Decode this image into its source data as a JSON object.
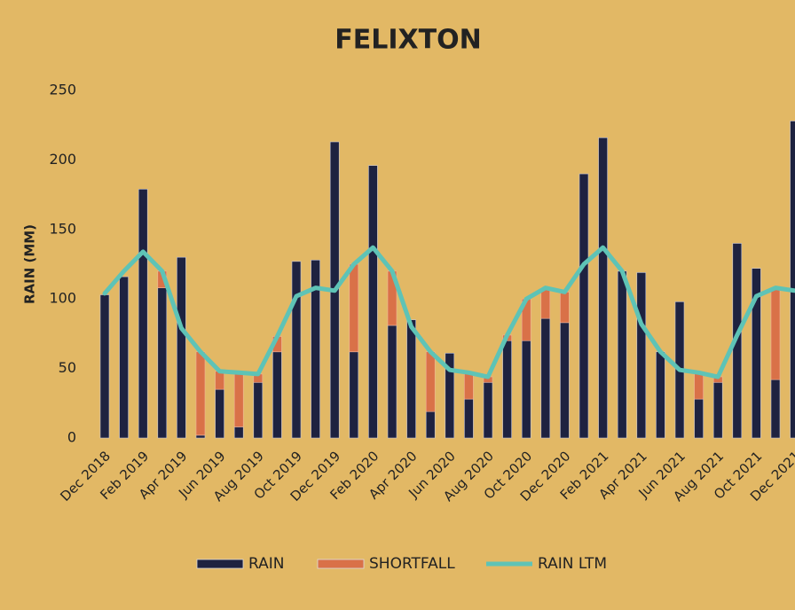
{
  "chart_data": {
    "type": "stacked-bar-line",
    "title": "FELIXTON",
    "y_label": "RAIN (MM)",
    "categories": [
      "Dec 2018",
      null,
      "Feb 2019",
      null,
      "Apr 2019",
      null,
      "Jun 2019",
      null,
      "Aug 2019",
      null,
      "Oct 2019",
      null,
      "Dec 2019",
      null,
      "Feb 2020",
      null,
      "Apr 2020",
      null,
      "Jun 2020",
      null,
      "Aug 2020",
      null,
      "Oct 2020",
      null,
      "Dec 2020",
      null,
      "Feb 2021",
      null,
      "Apr 2021",
      null,
      "Jun 2021",
      null,
      "Aug 2021",
      null,
      "Oct 2021",
      null,
      "Dec 2021"
    ],
    "series": [
      {
        "name": "RAIN",
        "kind": "bar",
        "color": "#1e2240",
        "values": [
          103,
          116,
          179,
          108,
          130,
          2,
          35,
          8,
          40,
          62,
          127,
          128,
          213,
          62,
          196,
          81,
          85,
          19,
          61,
          28,
          40,
          70,
          70,
          86,
          83,
          190,
          216,
          120,
          119,
          62,
          98,
          28,
          40,
          140,
          122,
          42,
          228
        ]
      },
      {
        "name": "SHORTFALL",
        "kind": "bar",
        "color": "#d97148",
        "values": [
          0,
          0,
          0,
          12,
          0,
          60,
          13,
          39,
          6,
          11,
          0,
          0,
          0,
          63,
          0,
          39,
          0,
          43,
          0,
          19,
          4,
          4,
          30,
          22,
          22,
          0,
          0,
          0,
          0,
          0,
          0,
          19,
          4,
          0,
          0,
          66,
          0
        ]
      },
      {
        "name": "RAIN LTM",
        "kind": "line",
        "color": "#5ec3b6",
        "values": [
          104,
          120,
          134,
          120,
          79,
          62,
          48,
          47,
          46,
          73,
          102,
          108,
          106,
          125,
          137,
          120,
          80,
          62,
          49,
          47,
          44,
          74,
          100,
          108,
          105,
          125,
          137,
          120,
          82,
          62,
          49,
          47,
          44,
          74,
          102,
          108,
          106
        ]
      }
    ],
    "ylim": [
      0,
      250
    ],
    "yticks": [
      0,
      50,
      100,
      150,
      200,
      250
    ],
    "grid": false
  }
}
